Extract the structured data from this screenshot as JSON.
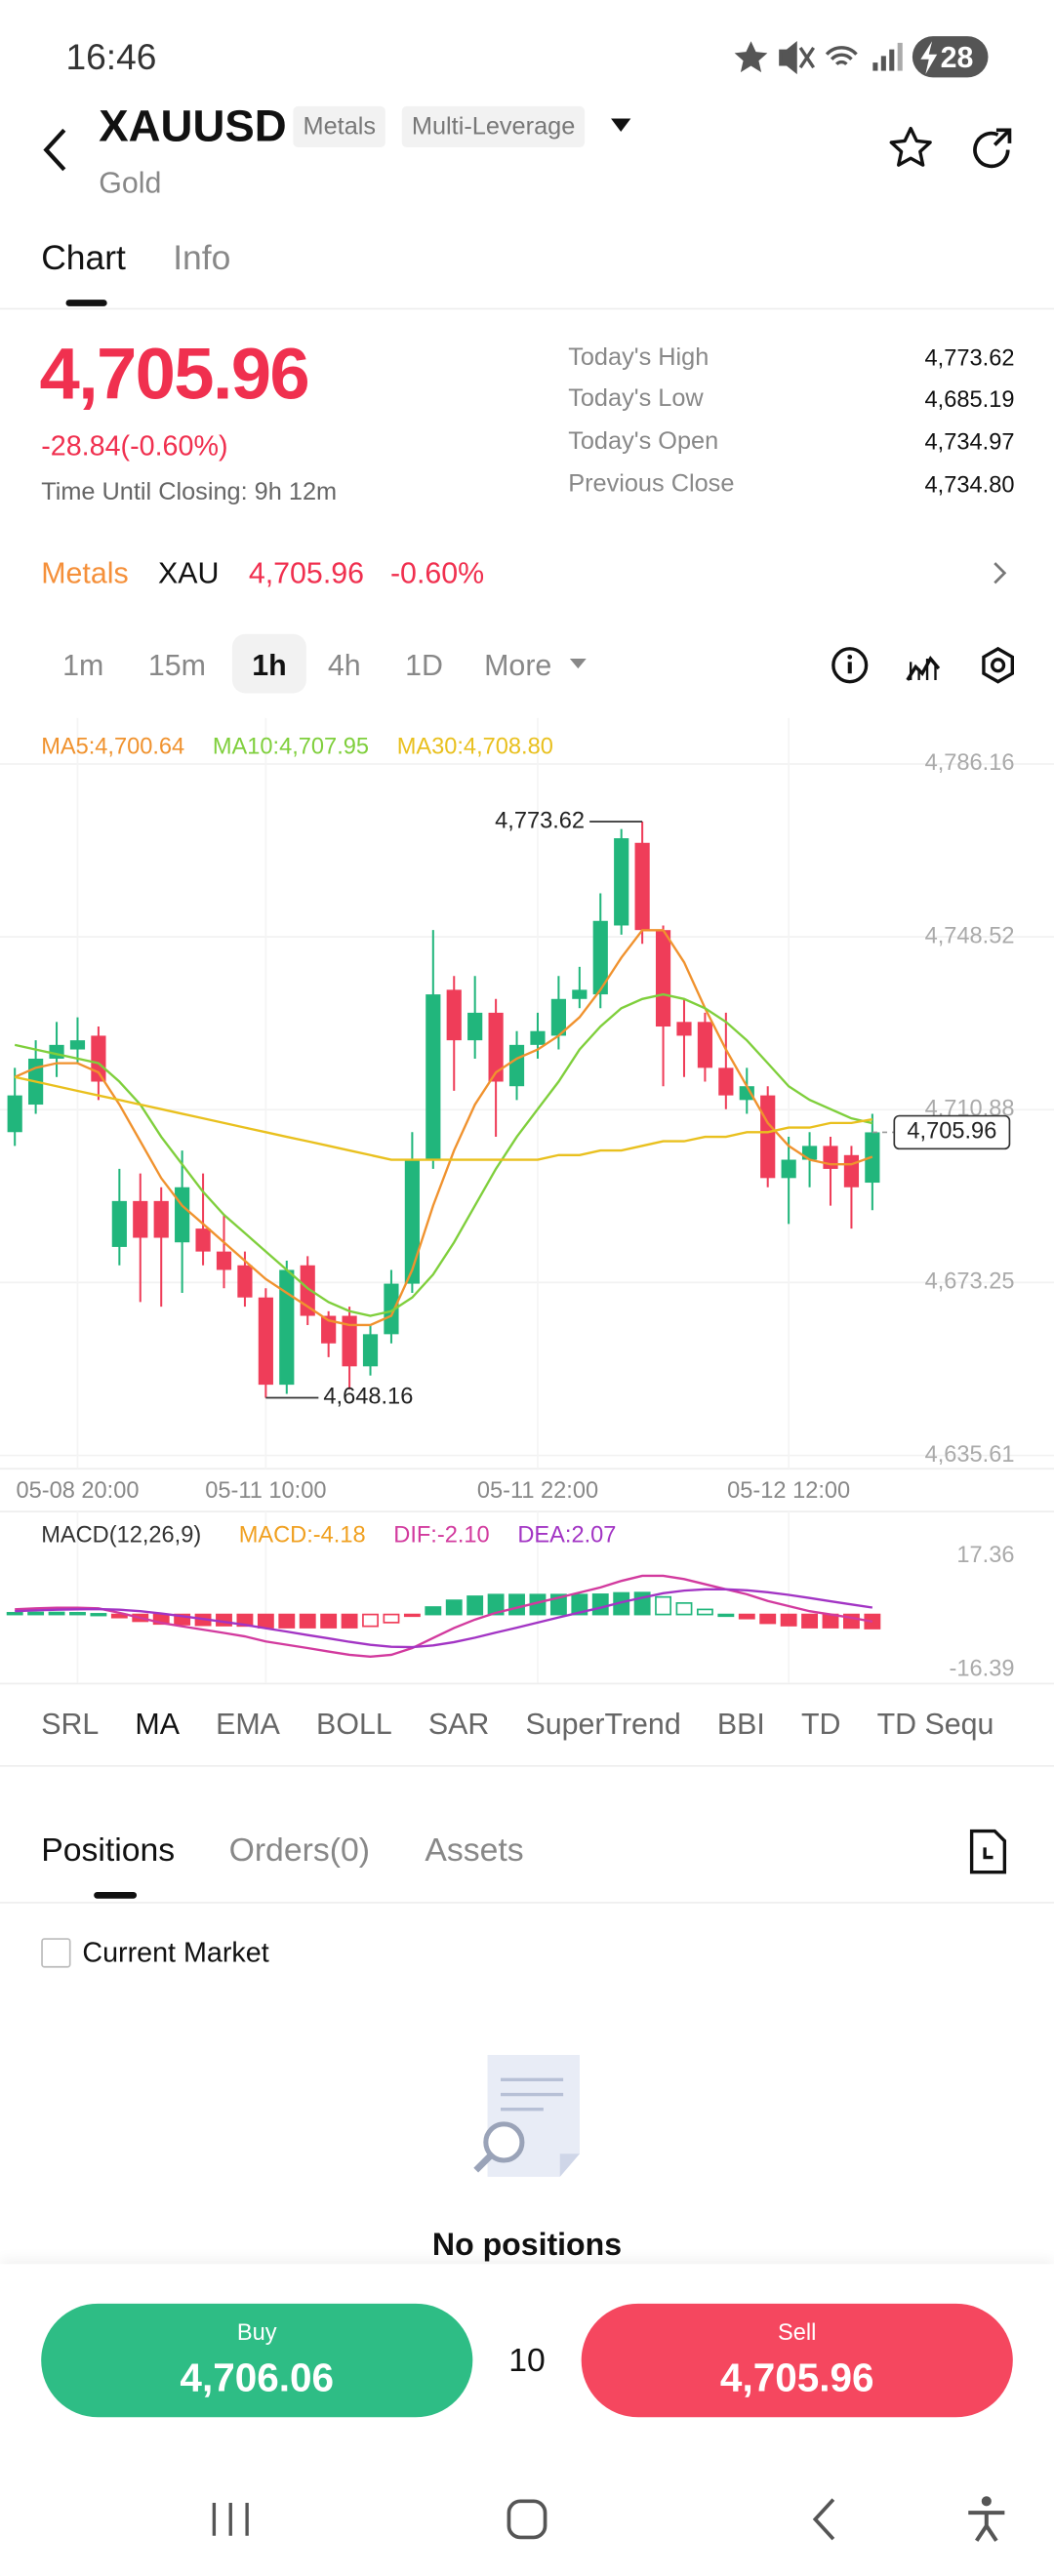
{
  "status_bar": {
    "time": "16:46",
    "battery": "28"
  },
  "header": {
    "symbol": "XAUUSD",
    "tags": [
      "Metals",
      "Multi-Leverage"
    ],
    "name": "Gold"
  },
  "tabs": [
    "Chart",
    "Info"
  ],
  "quote": {
    "price": "4,705.96",
    "change": "-28.84(-0.60%)",
    "closing": "Time Until Closing: 9h 12m",
    "stats": [
      {
        "label": "Today's High",
        "value": "4,773.62"
      },
      {
        "label": "Today's Low",
        "value": "4,685.19"
      },
      {
        "label": "Today's Open",
        "value": "4,734.97"
      },
      {
        "label": "Previous Close",
        "value": "4,734.80"
      }
    ]
  },
  "sector": {
    "name": "Metals",
    "symbol": "XAU",
    "price": "4,705.96",
    "change": "-0.60%"
  },
  "intervals": [
    "1m",
    "15m",
    "1h",
    "4h",
    "1D",
    "More"
  ],
  "chart_data": {
    "type": "candlestick",
    "open": [
      4706,
      4712,
      4722,
      4724,
      4727,
      4681,
      4691,
      4691,
      4682,
      4685,
      4680,
      4677,
      4670,
      4651,
      4677,
      4666,
      4666,
      4655,
      4662,
      4673,
      4700,
      4737,
      4726,
      4732,
      4716,
      4725,
      4727,
      4735,
      4736,
      4751,
      4769,
      4750,
      4730,
      4730,
      4720,
      4713,
      4714,
      4696,
      4700,
      4703,
      4701,
      4695
    ],
    "high": [
      4720,
      4726,
      4730,
      4731,
      4729,
      4698,
      4697,
      4694,
      4702,
      4697,
      4688,
      4680,
      4672,
      4678,
      4679,
      4667,
      4668,
      4664,
      4676,
      4706,
      4750,
      4740,
      4740,
      4735,
      4728,
      4732,
      4740,
      4742,
      4758,
      4772,
      4773.62,
      4751,
      4735,
      4732,
      4732,
      4720,
      4716,
      4705,
      4706,
      4705,
      4703,
      4710
    ],
    "low": [
      4703,
      4710,
      4718,
      4721,
      4713,
      4677,
      4669,
      4668,
      4671,
      4677,
      4672,
      4668,
      4648.16,
      4649,
      4664,
      4657,
      4650,
      4653,
      4660,
      4671,
      4698,
      4715,
      4722,
      4705,
      4713,
      4722,
      4724,
      4733,
      4733,
      4749,
      4747,
      4716,
      4718,
      4717,
      4711,
      4710,
      4694,
      4686,
      4694,
      4690,
      4685,
      4689
    ],
    "close": [
      4714,
      4722,
      4725,
      4726,
      4717,
      4691,
      4683,
      4683,
      4694,
      4680,
      4676,
      4670,
      4651,
      4676,
      4666,
      4660,
      4655,
      4662,
      4673,
      4700,
      4736,
      4726,
      4732,
      4717,
      4725,
      4728,
      4735,
      4737,
      4752,
      4770,
      4750,
      4729,
      4727,
      4720,
      4714,
      4716,
      4696,
      4700,
      4703,
      4698,
      4694,
      4705.96
    ],
    "up_color": "#21b67c",
    "down_color": "#ef3d59",
    "series": [
      {
        "label": "MA5:4,700.64",
        "color": "#f0922e",
        "values": [
          4718,
          4720,
          4721,
          4721,
          4719,
          4712,
          4704,
          4696,
          4690,
          4686,
          4682,
          4678,
          4674,
          4671,
          4668,
          4665,
          4664,
          4664,
          4666,
          4676,
          4690,
          4702,
          4712,
          4719,
          4722,
          4724,
          4727,
          4731,
          4737,
          4744,
          4750,
          4750,
          4743,
          4733,
          4724,
          4716,
          4708,
          4703,
          4700,
          4699,
          4699,
          4700.64
        ]
      },
      {
        "label": "MA10:4,707.95",
        "color": "#7fcf3c",
        "values": [
          4725,
          4724,
          4723,
          4722,
          4721,
          4717,
          4712,
          4705,
          4699,
          4693,
          4688,
          4684,
          4680,
          4676,
          4672,
          4669,
          4667,
          4666,
          4667,
          4670,
          4675,
          4682,
          4690,
          4698,
          4705,
          4711,
          4717,
          4724,
          4729,
          4733,
          4735,
          4736,
          4735,
          4733,
          4730,
          4726,
          4721,
          4716,
          4713,
          4711,
          4709,
          4707.95
        ]
      },
      {
        "label": "MA30:4,708.80",
        "color": "#e9c01e",
        "values": [
          4718,
          4717,
          4716,
          4715,
          4714,
          4713,
          4712,
          4711,
          4710,
          4709,
          4708,
          4707,
          4706,
          4705,
          4704,
          4703,
          4702,
          4701,
          4700,
          4700,
          4700,
          4700,
          4700,
          4700,
          4700,
          4700,
          4701,
          4701,
          4702,
          4702,
          4703,
          4704,
          4704,
          4705,
          4705,
          4706,
          4706,
          4707,
          4707,
          4708,
          4708,
          4708.8
        ]
      }
    ],
    "ylim": [
      4632.7,
      4796.2
    ],
    "yticks": [
      {
        "value": 4786.16,
        "label": "4,786.16"
      },
      {
        "value": 4748.52,
        "label": "4,748.52"
      },
      {
        "value": 4710.88,
        "label": "4,710.88"
      },
      {
        "value": 4673.25,
        "label": "4,673.25"
      },
      {
        "value": 4635.61,
        "label": "4,635.61"
      }
    ],
    "xticks": [
      {
        "value": 3,
        "label": "05-08 20:00"
      },
      {
        "value": 12,
        "label": "05-11 10:00"
      },
      {
        "value": 25,
        "label": "05-11 22:00"
      },
      {
        "value": 37,
        "label": "05-12 12:00"
      }
    ],
    "high_label": "4,773.62",
    "low_label": "4,648.16",
    "last_price": {
      "value": 4705.96,
      "label": "4,705.96"
    },
    "grid": true,
    "macd_title": "MACD(12,26,9)",
    "macd_series": [
      {
        "label": "MACD:-4.18",
        "color": "#f0a020",
        "values": [
          0.5,
          0.6,
          0.6,
          0.5,
          0.2,
          -0.9,
          -2,
          -2.8,
          -3,
          -3.2,
          -3.3,
          -3.4,
          -3.9,
          -3.9,
          -3.9,
          -3.9,
          -3.9,
          -3.5,
          -2.4,
          -0.3,
          2.2,
          4.2,
          5.4,
          5.9,
          5.9,
          5.9,
          5.9,
          5.9,
          6,
          6.4,
          6.5,
          5.2,
          3.4,
          1.5,
          0,
          -1.2,
          -2.6,
          -3.3,
          -3.9,
          -3.9,
          -4,
          -4.18
        ]
      },
      {
        "label": "DIF:-2.10",
        "color": "#d23a9e",
        "values": [
          1.5,
          1.8,
          2,
          2,
          1.8,
          0.5,
          -1,
          -2.5,
          -3.5,
          -4.5,
          -5.5,
          -6.5,
          -8,
          -9,
          -10,
          -11,
          -12,
          -12.5,
          -12,
          -10,
          -7,
          -4,
          -1.5,
          0.5,
          2,
          3.5,
          5,
          6.5,
          8,
          10,
          11.5,
          11.5,
          10.5,
          9,
          7.5,
          6,
          4,
          2.5,
          1,
          0,
          -1,
          -2.1
        ]
      },
      {
        "label": "DEA:2.07",
        "color": "#a234c4",
        "values": [
          1,
          1.2,
          1.4,
          1.5,
          1.6,
          1.4,
          1,
          0.3,
          -0.5,
          -1.3,
          -2.2,
          -3.1,
          -4.1,
          -5.1,
          -6.1,
          -7.1,
          -8.1,
          -9,
          -9.6,
          -9.7,
          -9.2,
          -8.2,
          -6.9,
          -5.4,
          -3.9,
          -2.4,
          -0.9,
          0.6,
          2,
          3.6,
          5,
          6.3,
          7.1,
          7.5,
          7.5,
          7.2,
          6.6,
          5.8,
          4.9,
          3.9,
          3,
          2.07
        ]
      }
    ],
    "y2lim": [
      -20.3,
      30.57
    ],
    "y2ticks": [
      17.36,
      -16.39
    ]
  },
  "indicators": [
    "SRL",
    "MA",
    "EMA",
    "BOLL",
    "SAR",
    "SuperTrend",
    "BBI",
    "TD",
    "TD Sequ"
  ],
  "positions": {
    "tabs": [
      "Positions",
      "Orders(0)",
      "Assets"
    ],
    "filter": "Current Market",
    "empty": "No positions"
  },
  "trade": {
    "buy": {
      "label": "Buy",
      "price": "4,706.06"
    },
    "quantity": "10",
    "sell": {
      "label": "Sell",
      "price": "4,705.96"
    }
  }
}
